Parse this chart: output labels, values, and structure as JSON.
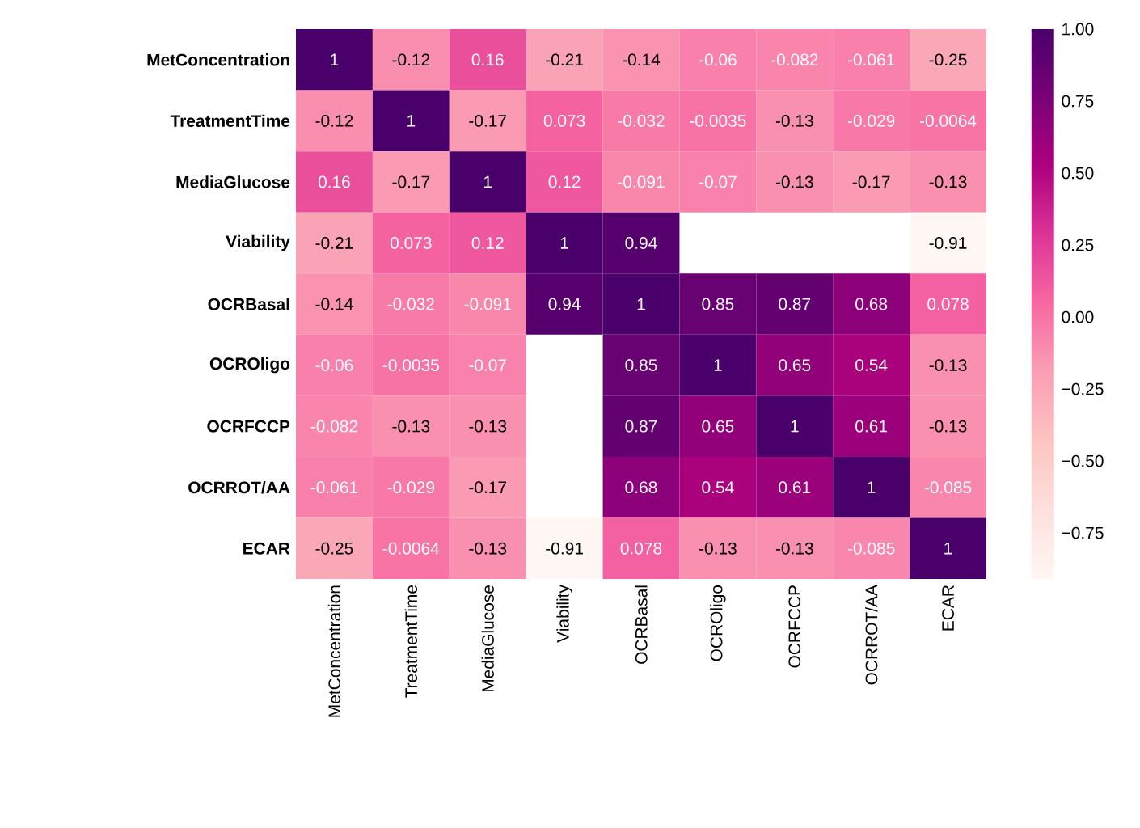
{
  "chart_data": {
    "type": "heatmap",
    "categories": [
      "MetConcentration",
      "TreatmentTime",
      "MediaGlucose",
      "Viability",
      "OCRBasal",
      "OCROligo",
      "OCRFCCP",
      "OCRROT/AA",
      "ECAR"
    ],
    "y_categories": [
      "MetConcentration",
      "TreatmentTime",
      "MediaGlucose",
      "Viability",
      "OCRBasal",
      "OCROligo",
      "OCRFCCP",
      "OCRROT/AA",
      "ECAR"
    ],
    "cells": [
      [
        1,
        -0.12,
        0.16,
        -0.21,
        -0.14,
        -0.06,
        -0.082,
        -0.061,
        -0.25
      ],
      [
        -0.12,
        1,
        -0.17,
        0.073,
        -0.032,
        -0.0035,
        -0.13,
        -0.029,
        -0.0064
      ],
      [
        0.16,
        -0.17,
        1,
        0.12,
        -0.091,
        -0.07,
        -0.13,
        -0.17,
        -0.13
      ],
      [
        -0.21,
        0.073,
        0.12,
        1,
        0.94,
        null,
        null,
        null,
        -0.91
      ],
      [
        -0.14,
        -0.032,
        -0.091,
        0.94,
        1,
        0.85,
        0.87,
        0.68,
        0.078
      ],
      [
        -0.06,
        -0.0035,
        -0.07,
        null,
        0.85,
        1,
        0.65,
        0.54,
        -0.13
      ],
      [
        -0.082,
        -0.13,
        -0.13,
        null,
        0.87,
        0.65,
        1,
        0.61,
        -0.13
      ],
      [
        -0.061,
        -0.029,
        -0.17,
        null,
        0.68,
        0.54,
        0.61,
        1,
        -0.085
      ],
      [
        -0.25,
        -0.0064,
        -0.13,
        -0.91,
        0.078,
        -0.13,
        -0.13,
        -0.085,
        1
      ]
    ],
    "data_labels": true,
    "clim": [
      -0.91,
      1
    ],
    "cticks": [
      {
        "value": 1,
        "label": "1.00"
      },
      {
        "value": 0.75,
        "label": "0.75"
      },
      {
        "value": 0.5,
        "label": "0.50"
      },
      {
        "value": 0.25,
        "label": "0.25"
      },
      {
        "value": 0,
        "label": "0.00"
      },
      {
        "value": -0.25,
        "label": "−0.25"
      },
      {
        "value": -0.5,
        "label": "−0.50"
      },
      {
        "value": -0.75,
        "label": "−0.75"
      }
    ]
  }
}
